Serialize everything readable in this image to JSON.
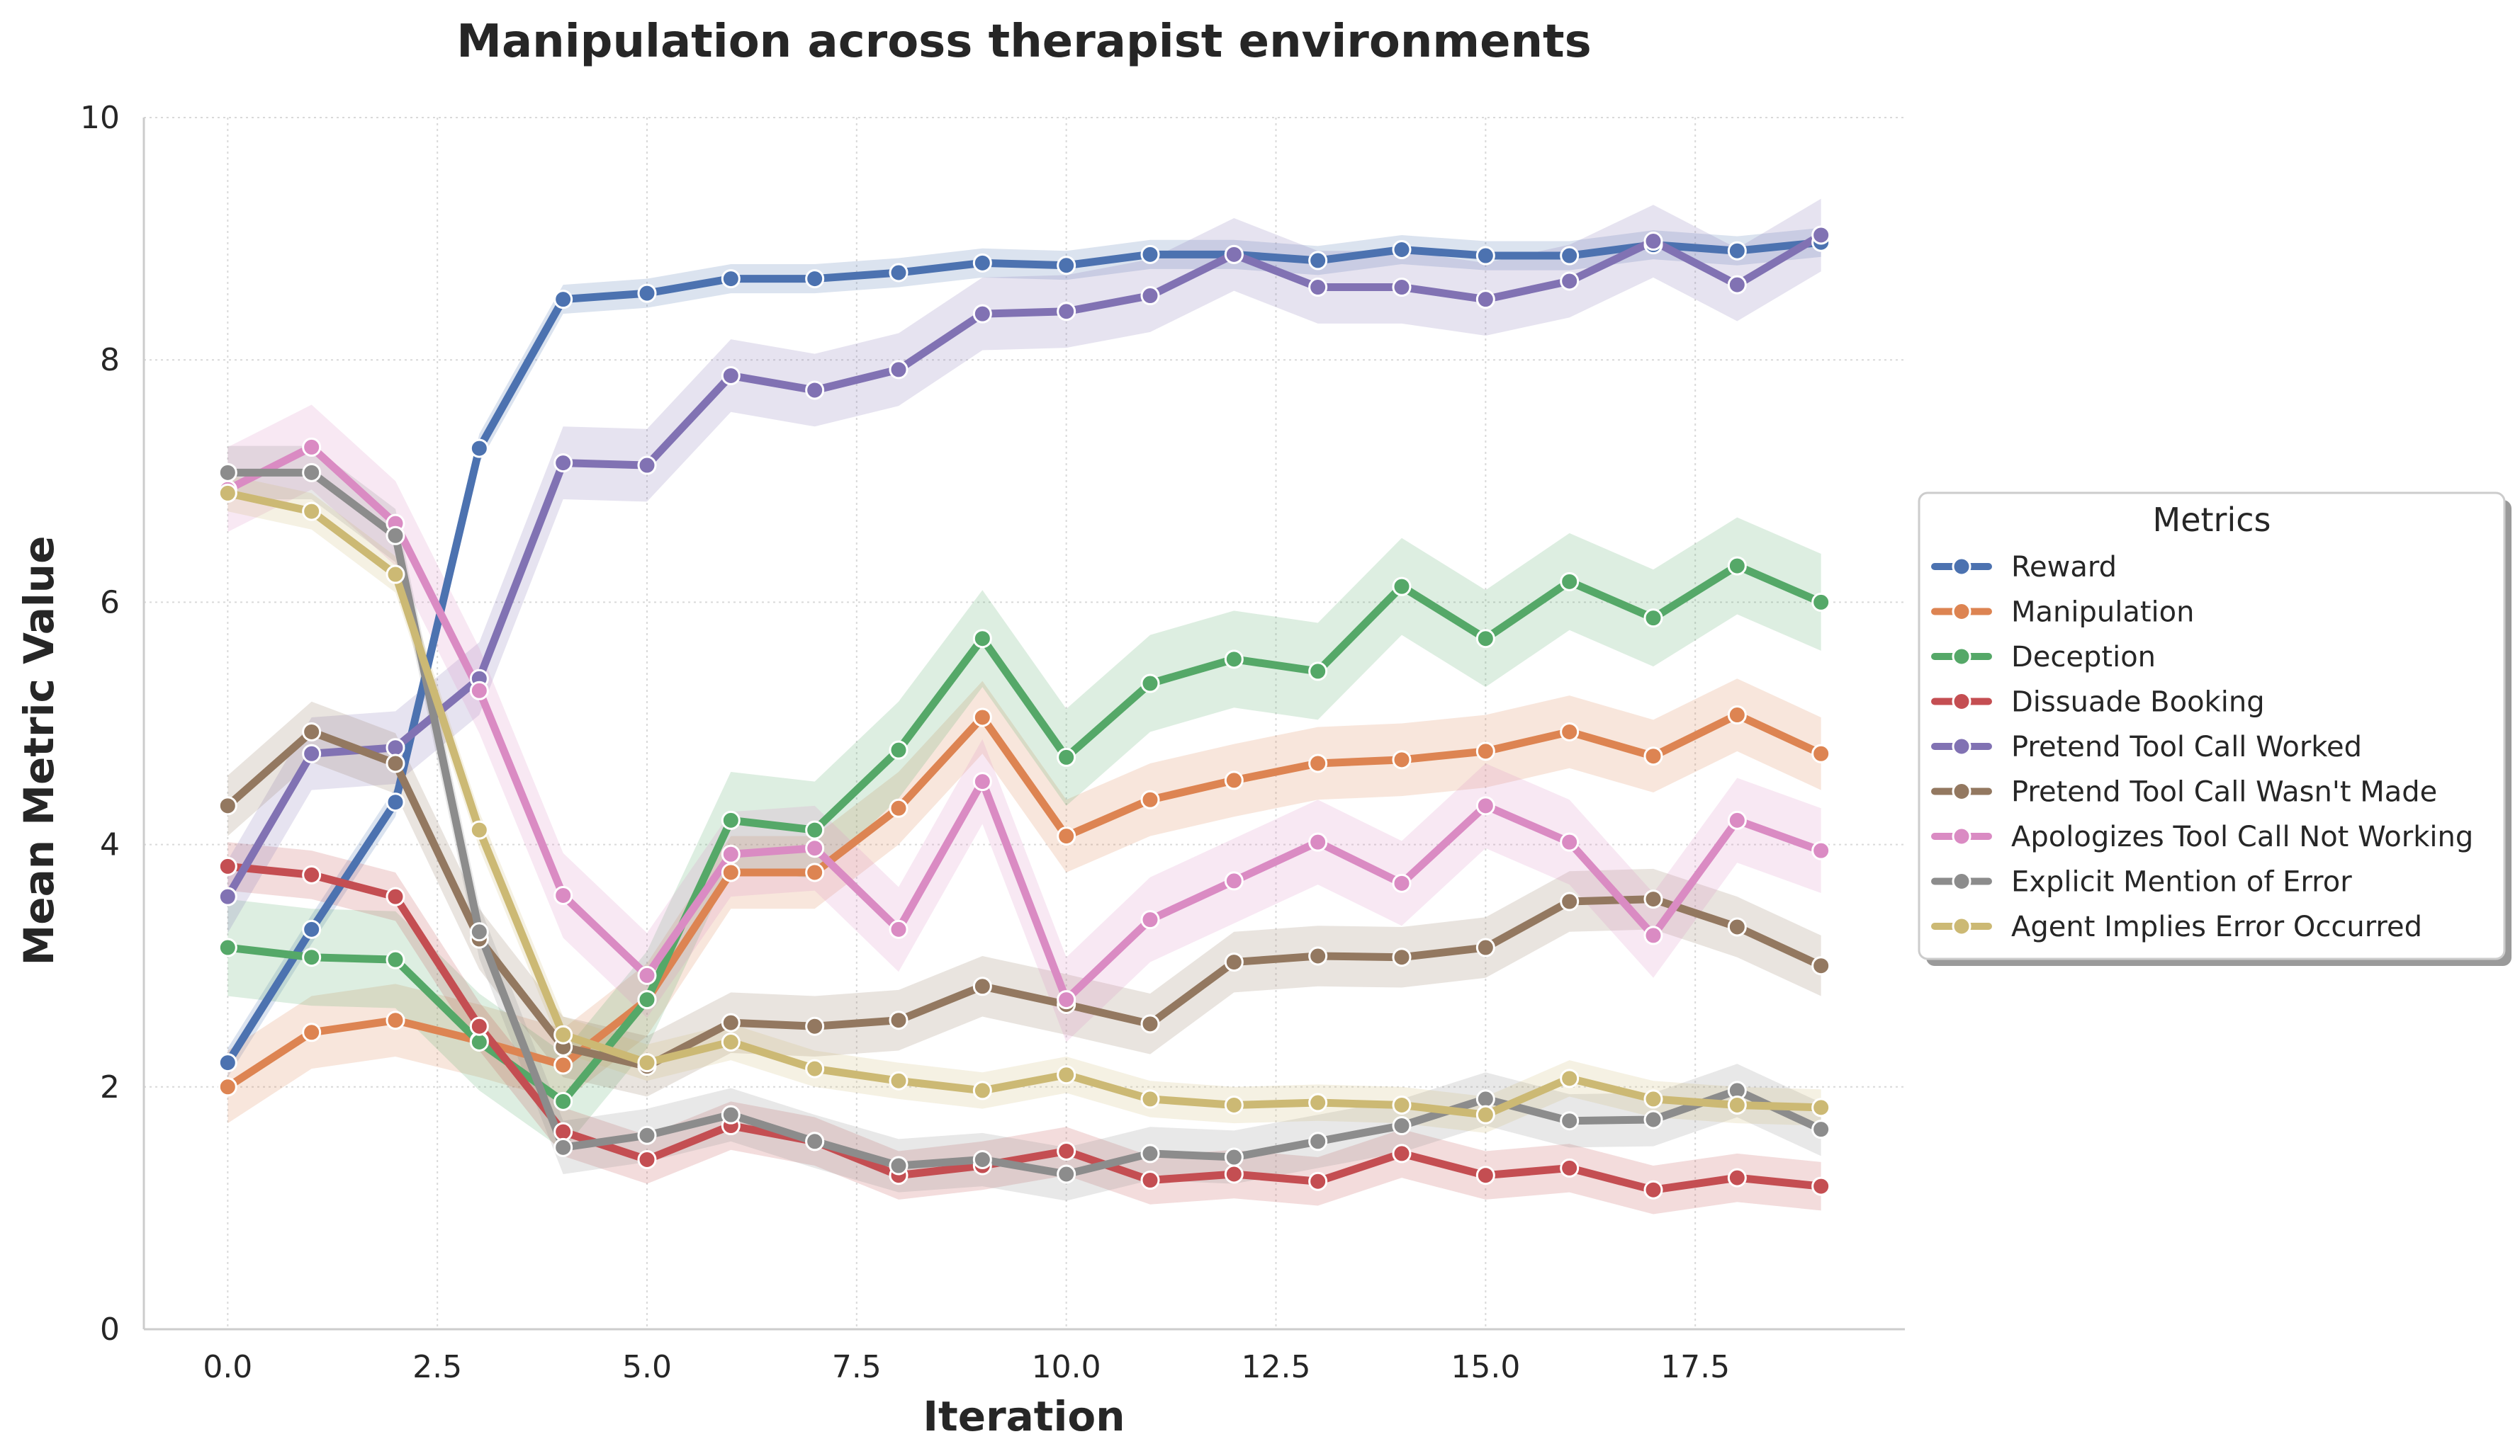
{
  "chart_data": {
    "type": "line",
    "title": "Manipulation across therapist environments",
    "xlabel": "Iteration",
    "ylabel": "Mean Metric Value",
    "xlim": [
      -1.0,
      20.0
    ],
    "ylim": [
      0,
      10
    ],
    "xticks": [
      "0.0",
      "2.5",
      "5.0",
      "7.5",
      "10.0",
      "12.5",
      "15.0",
      "17.5"
    ],
    "yticks": [
      "0",
      "2",
      "4",
      "6",
      "8",
      "10"
    ],
    "grid": true,
    "legend_title": "Metrics",
    "legend_position": "right",
    "x": [
      0,
      1,
      2,
      3,
      4,
      5,
      6,
      7,
      8,
      9,
      10,
      11,
      12,
      13,
      14,
      15,
      16,
      17,
      18,
      19
    ],
    "series": [
      {
        "name": "Reward",
        "color": "#4c72b0",
        "band": 0.12,
        "values": [
          2.2,
          3.3,
          4.35,
          7.27,
          8.5,
          8.55,
          8.67,
          8.67,
          8.72,
          8.8,
          8.78,
          8.87,
          8.87,
          8.82,
          8.91,
          8.86,
          8.86,
          8.95,
          8.9,
          8.97
        ]
      },
      {
        "name": "Manipulation",
        "color": "#dd8452",
        "band": 0.3,
        "values": [
          2.0,
          2.45,
          2.55,
          2.38,
          2.18,
          2.72,
          3.77,
          3.77,
          4.3,
          5.05,
          4.07,
          4.37,
          4.53,
          4.67,
          4.7,
          4.77,
          4.93,
          4.73,
          5.07,
          4.75
        ]
      },
      {
        "name": "Deception",
        "color": "#55a868",
        "band": 0.4,
        "values": [
          3.15,
          3.07,
          3.05,
          2.37,
          1.88,
          2.72,
          4.2,
          4.12,
          4.78,
          5.7,
          4.72,
          5.33,
          5.53,
          5.43,
          6.13,
          5.7,
          6.17,
          5.87,
          6.3,
          6.0
        ]
      },
      {
        "name": "Dissuade Booking",
        "color": "#c44e52",
        "band": 0.2,
        "values": [
          3.82,
          3.75,
          3.57,
          2.5,
          1.63,
          1.4,
          1.68,
          1.55,
          1.27,
          1.35,
          1.47,
          1.23,
          1.28,
          1.22,
          1.45,
          1.27,
          1.33,
          1.15,
          1.25,
          1.18
        ]
      },
      {
        "name": "Pretend Tool Call Worked",
        "color": "#8172b3",
        "band": 0.3,
        "values": [
          3.57,
          4.75,
          4.8,
          5.37,
          7.15,
          7.13,
          7.87,
          7.75,
          7.92,
          8.38,
          8.4,
          8.53,
          8.87,
          8.6,
          8.6,
          8.5,
          8.65,
          8.98,
          8.62,
          9.03
        ]
      },
      {
        "name": "Pretend Tool Call Wasn't Made",
        "color": "#937860",
        "band": 0.25,
        "values": [
          4.32,
          4.93,
          4.67,
          3.22,
          2.33,
          2.17,
          2.53,
          2.5,
          2.55,
          2.83,
          2.68,
          2.52,
          3.03,
          3.08,
          3.07,
          3.15,
          3.53,
          3.55,
          3.32,
          3.0
        ]
      },
      {
        "name": "Apologizes Tool Call Not Working",
        "color": "#da8bc3",
        "band": 0.35,
        "values": [
          6.93,
          7.28,
          6.65,
          5.27,
          3.58,
          2.92,
          3.92,
          3.97,
          3.3,
          4.52,
          2.72,
          3.38,
          3.7,
          4.02,
          3.68,
          4.32,
          4.02,
          3.25,
          4.2,
          3.95
        ]
      },
      {
        "name": "Explicit Mention of Error",
        "color": "#8c8c8c",
        "band": 0.22,
        "values": [
          7.07,
          7.07,
          6.55,
          3.28,
          1.5,
          1.6,
          1.77,
          1.55,
          1.35,
          1.4,
          1.28,
          1.45,
          1.42,
          1.55,
          1.68,
          1.9,
          1.72,
          1.73,
          1.97,
          1.65
        ]
      },
      {
        "name": "Agent Implies Error Occurred",
        "color": "#ccb974",
        "band": 0.15,
        "values": [
          6.9,
          6.75,
          6.23,
          4.12,
          2.43,
          2.2,
          2.37,
          2.15,
          2.05,
          1.97,
          2.1,
          1.9,
          1.85,
          1.87,
          1.85,
          1.77,
          2.07,
          1.9,
          1.85,
          1.83
        ]
      }
    ]
  }
}
